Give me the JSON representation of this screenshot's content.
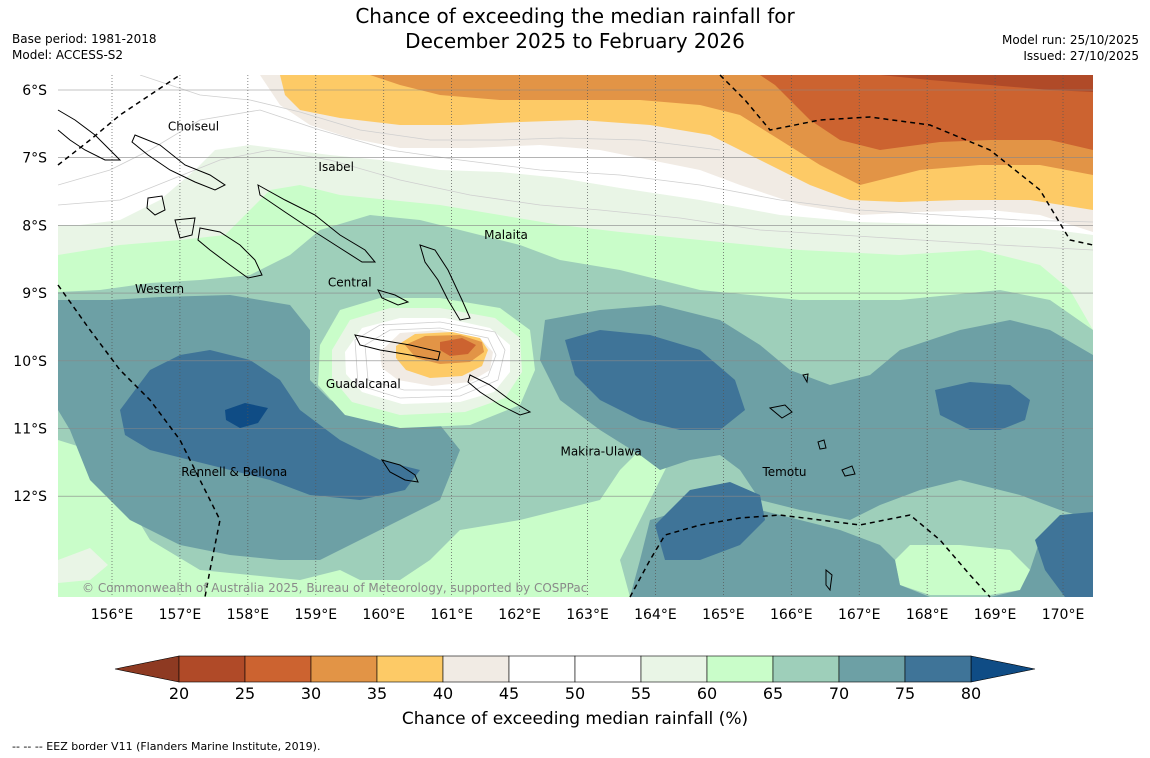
{
  "header": {
    "title_line1": "Chance of exceeding the median rainfall for",
    "title_line2": "December 2025 to February 2026",
    "base_period": "Base period: 1981-2018",
    "model": "Model: ACCESS-S2",
    "model_run": "Model run: 25/10/2025",
    "issued": "Issued: 27/10/2025"
  },
  "map": {
    "lat_labels": [
      "6°S",
      "7°S",
      "8°S",
      "9°S",
      "10°S",
      "11°S",
      "12°S"
    ],
    "lon_labels": [
      "156°E",
      "157°E",
      "158°E",
      "159°E",
      "160°E",
      "161°E",
      "162°E",
      "163°E",
      "164°E",
      "165°E",
      "166°E",
      "167°E",
      "168°E",
      "169°E",
      "170°E"
    ],
    "provinces": [
      {
        "name": "Choiseul",
        "lon": 157.2,
        "lat": -6.6
      },
      {
        "name": "Isabel",
        "lon": 159.3,
        "lat": -7.2
      },
      {
        "name": "Malaita",
        "lon": 161.8,
        "lat": -8.2
      },
      {
        "name": "Central",
        "lon": 159.5,
        "lat": -8.9
      },
      {
        "name": "Western",
        "lon": 156.7,
        "lat": -9.0
      },
      {
        "name": "Guadalcanal",
        "lon": 159.7,
        "lat": -10.4
      },
      {
        "name": "Makira-Ulawa",
        "lon": 163.2,
        "lat": -11.4
      },
      {
        "name": "Rennell & Bellona",
        "lon": 157.8,
        "lat": -11.7
      },
      {
        "name": "Temotu",
        "lon": 165.9,
        "lat": -11.7
      }
    ],
    "copyright": "© Commonwealth of Australia 2025, Bureau of Meteorology, supported by COSPPac",
    "colors": {
      "lt20": "#8e3a22",
      "20-25": "#b04a28",
      "25-30": "#cc6330",
      "30-35": "#e29446",
      "35-40": "#fdca66",
      "40-45": "#f1ebe4",
      "45-55": "#ffffff",
      "55-60": "#e9f5e6",
      "60-65": "#c9fdc9",
      "65-70": "#9ecfba",
      "70-75": "#6da0a5",
      "75-80": "#3f7498",
      "gt80": "#0f4c85"
    }
  },
  "colorbar": {
    "ticks": [
      "20",
      "25",
      "30",
      "35",
      "40",
      "45",
      "50",
      "55",
      "60",
      "65",
      "70",
      "75",
      "80"
    ],
    "label": "Chance of exceeding median rainfall (%)"
  },
  "footer": {
    "eez_note": "--  --  -- EEZ border V11 (Flanders Marine Institute, 2019)."
  }
}
